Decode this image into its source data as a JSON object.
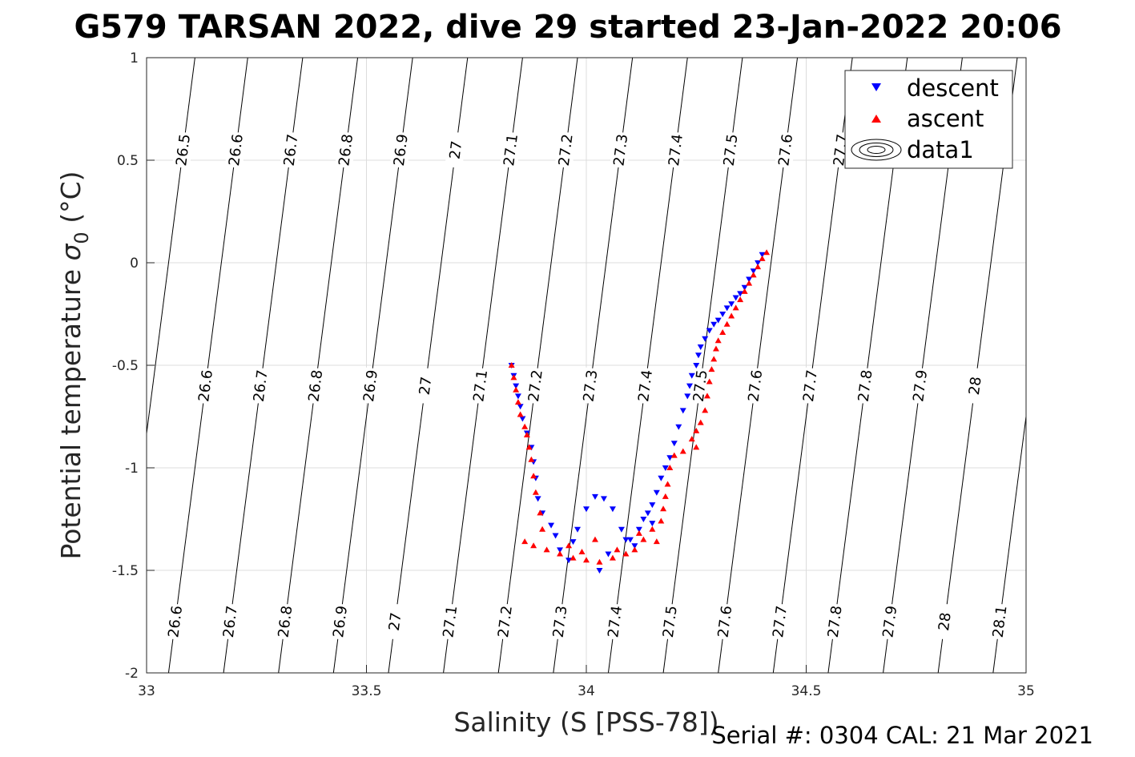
{
  "title": "G579 TARSAN 2022, dive 29 started 23-Jan-2022 20:06",
  "footer": "Serial #: 0304  CAL: 21 Mar 2021",
  "chart_data": {
    "type": "scatter",
    "xlabel": "Salinity (S [PSS-78])",
    "ylabel_main": "Potential temperature ",
    "ylabel_symbol": "σ",
    "ylabel_sub": "0",
    "ylabel_unit": " (°C)",
    "xlim": [
      33,
      35
    ],
    "ylim": [
      -2,
      1
    ],
    "xticks": [
      33,
      33.5,
      34,
      34.5,
      35
    ],
    "xtick_labels": [
      "33",
      "33.5",
      "34",
      "34.5",
      "35"
    ],
    "yticks": [
      -2,
      -1.5,
      -1,
      -0.5,
      0,
      0.5,
      1
    ],
    "ytick_labels": [
      "-2",
      "-1.5",
      "-1",
      "-0.5",
      "0",
      "0.5",
      "1"
    ],
    "grid": true,
    "legend_position": "top-right",
    "legend": [
      {
        "label": "descent",
        "marker": "triangle-down",
        "color": "#0000ff"
      },
      {
        "label": "ascent",
        "marker": "triangle-up",
        "color": "#ff0000"
      },
      {
        "label": "data1",
        "marker": "contour",
        "color": "#000000"
      }
    ],
    "contours": [
      {
        "level": "26.5",
        "s_at_tmin": 32.93
      },
      {
        "level": "26.6",
        "s_at_tmin": 33.05
      },
      {
        "level": "26.7",
        "s_at_tmin": 33.175
      },
      {
        "level": "26.8",
        "s_at_tmin": 33.3
      },
      {
        "level": "26.9",
        "s_at_tmin": 33.425
      },
      {
        "level": "27",
        "s_at_tmin": 33.55
      },
      {
        "level": "27.1",
        "s_at_tmin": 33.675
      },
      {
        "level": "27.2",
        "s_at_tmin": 33.8
      },
      {
        "level": "27.3",
        "s_at_tmin": 33.925
      },
      {
        "level": "27.4",
        "s_at_tmin": 34.05
      },
      {
        "level": "27.5",
        "s_at_tmin": 34.175
      },
      {
        "level": "27.6",
        "s_at_tmin": 34.3
      },
      {
        "level": "27.7",
        "s_at_tmin": 34.425
      },
      {
        "level": "27.8",
        "s_at_tmin": 34.55
      },
      {
        "level": "27.9",
        "s_at_tmin": 34.675
      },
      {
        "level": "28",
        "s_at_tmin": 34.8
      },
      {
        "level": "28.1",
        "s_at_tmin": 34.925
      }
    ],
    "series": [
      {
        "name": "descent",
        "color": "#0000ff",
        "marker": "triangle-down",
        "points": [
          [
            34.4,
            0.04
          ],
          [
            34.39,
            0.0
          ],
          [
            34.38,
            -0.04
          ],
          [
            34.37,
            -0.08
          ],
          [
            34.36,
            -0.12
          ],
          [
            34.35,
            -0.15
          ],
          [
            34.34,
            -0.17
          ],
          [
            34.33,
            -0.2
          ],
          [
            34.32,
            -0.22
          ],
          [
            34.31,
            -0.25
          ],
          [
            34.3,
            -0.28
          ],
          [
            34.29,
            -0.3
          ],
          [
            34.28,
            -0.33
          ],
          [
            34.27,
            -0.37
          ],
          [
            34.26,
            -0.41
          ],
          [
            34.255,
            -0.45
          ],
          [
            34.25,
            -0.5
          ],
          [
            34.24,
            -0.55
          ],
          [
            34.235,
            -0.6
          ],
          [
            34.23,
            -0.65
          ],
          [
            34.22,
            -0.72
          ],
          [
            34.21,
            -0.8
          ],
          [
            34.2,
            -0.88
          ],
          [
            34.19,
            -0.95
          ],
          [
            34.18,
            -1.0
          ],
          [
            34.17,
            -1.05
          ],
          [
            34.16,
            -1.12
          ],
          [
            34.15,
            -1.18
          ],
          [
            34.14,
            -1.22
          ],
          [
            34.13,
            -1.25
          ],
          [
            34.12,
            -1.3
          ],
          [
            34.1,
            -1.35
          ],
          [
            34.08,
            -1.3
          ],
          [
            34.06,
            -1.2
          ],
          [
            34.04,
            -1.15
          ],
          [
            34.02,
            -1.14
          ],
          [
            34.0,
            -1.2
          ],
          [
            33.98,
            -1.3
          ],
          [
            33.96,
            -1.45
          ],
          [
            33.94,
            -1.4
          ],
          [
            33.92,
            -1.28
          ],
          [
            33.9,
            -1.22
          ],
          [
            33.89,
            -1.15
          ],
          [
            33.885,
            -1.05
          ],
          [
            33.88,
            -0.97
          ],
          [
            33.875,
            -0.9
          ],
          [
            33.865,
            -0.83
          ],
          [
            33.855,
            -0.76
          ],
          [
            33.85,
            -0.7
          ],
          [
            33.845,
            -0.65
          ],
          [
            33.84,
            -0.6
          ],
          [
            33.835,
            -0.55
          ],
          [
            33.83,
            -0.5
          ],
          [
            34.03,
            -1.5
          ],
          [
            34.05,
            -1.42
          ],
          [
            34.09,
            -1.35
          ],
          [
            34.11,
            -1.38
          ],
          [
            33.97,
            -1.36
          ],
          [
            33.93,
            -1.33
          ],
          [
            34.15,
            -1.27
          ]
        ]
      },
      {
        "name": "ascent",
        "color": "#ff0000",
        "marker": "triangle-up",
        "points": [
          [
            34.41,
            0.05
          ],
          [
            34.4,
            0.02
          ],
          [
            34.39,
            -0.02
          ],
          [
            34.38,
            -0.06
          ],
          [
            34.37,
            -0.1
          ],
          [
            34.36,
            -0.14
          ],
          [
            34.35,
            -0.18
          ],
          [
            34.34,
            -0.22
          ],
          [
            34.33,
            -0.26
          ],
          [
            34.32,
            -0.3
          ],
          [
            34.31,
            -0.34
          ],
          [
            34.3,
            -0.38
          ],
          [
            34.295,
            -0.42
          ],
          [
            34.29,
            -0.47
          ],
          [
            34.285,
            -0.52
          ],
          [
            34.28,
            -0.58
          ],
          [
            34.275,
            -0.65
          ],
          [
            34.27,
            -0.72
          ],
          [
            34.26,
            -0.78
          ],
          [
            34.25,
            -0.82
          ],
          [
            34.24,
            -0.86
          ],
          [
            34.25,
            -0.9
          ],
          [
            34.22,
            -0.92
          ],
          [
            34.2,
            -0.94
          ],
          [
            34.19,
            -1.0
          ],
          [
            34.185,
            -1.08
          ],
          [
            34.18,
            -1.14
          ],
          [
            34.175,
            -1.2
          ],
          [
            34.17,
            -1.26
          ],
          [
            34.15,
            -1.3
          ],
          [
            34.13,
            -1.35
          ],
          [
            34.11,
            -1.4
          ],
          [
            34.09,
            -1.42
          ],
          [
            34.06,
            -1.44
          ],
          [
            34.03,
            -1.46
          ],
          [
            34.0,
            -1.45
          ],
          [
            33.97,
            -1.44
          ],
          [
            33.94,
            -1.42
          ],
          [
            33.91,
            -1.4
          ],
          [
            33.88,
            -1.38
          ],
          [
            33.86,
            -1.36
          ],
          [
            33.9,
            -1.3
          ],
          [
            33.895,
            -1.22
          ],
          [
            33.885,
            -1.12
          ],
          [
            33.88,
            -1.04
          ],
          [
            33.875,
            -0.96
          ],
          [
            33.87,
            -0.9
          ],
          [
            33.865,
            -0.84
          ],
          [
            33.86,
            -0.8
          ],
          [
            33.85,
            -0.74
          ],
          [
            33.845,
            -0.68
          ],
          [
            33.84,
            -0.62
          ],
          [
            33.835,
            -0.56
          ],
          [
            33.83,
            -0.5
          ],
          [
            34.02,
            -1.35
          ],
          [
            34.07,
            -1.4
          ],
          [
            33.99,
            -1.41
          ],
          [
            34.12,
            -1.32
          ],
          [
            33.96,
            -1.38
          ],
          [
            34.16,
            -1.36
          ]
        ]
      }
    ]
  }
}
